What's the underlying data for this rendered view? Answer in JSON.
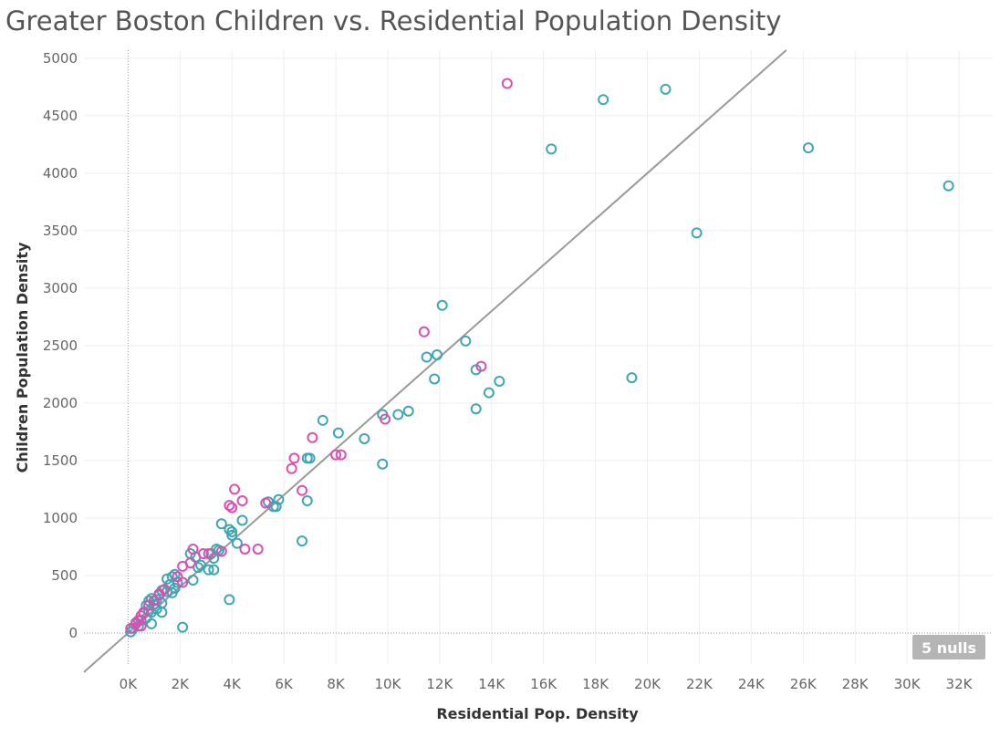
{
  "chart_data": {
    "type": "scatter",
    "title": "Greater Boston Children vs. Residential Population Density",
    "xlabel": "Residential Pop. Density",
    "ylabel": "Children Population Density",
    "xlim": [
      -1700,
      33300
    ],
    "ylim": [
      -270,
      5070
    ],
    "x_ticks": [
      0,
      2000,
      4000,
      6000,
      8000,
      10000,
      12000,
      14000,
      16000,
      18000,
      20000,
      22000,
      24000,
      26000,
      28000,
      30000,
      32000
    ],
    "x_tick_labels": [
      "0K",
      "2K",
      "4K",
      "6K",
      "8K",
      "10K",
      "12K",
      "14K",
      "16K",
      "18K",
      "20K",
      "22K",
      "24K",
      "26K",
      "28K",
      "30K",
      "32K"
    ],
    "y_ticks": [
      0,
      500,
      1000,
      1500,
      2000,
      2500,
      3000,
      3500,
      4000,
      4500,
      5000
    ],
    "y_tick_labels": [
      "0",
      "500",
      "1000",
      "1500",
      "2000",
      "2500",
      "3000",
      "3500",
      "4000",
      "4500",
      "5000"
    ],
    "grid": true,
    "trend_line": {
      "slope": 0.2,
      "intercept": 0
    },
    "colors": {
      "teal": "#3fa6b3",
      "pink": "#db4fb1",
      "trend": "#999999",
      "grid": "#eeeeee"
    },
    "nulls_indicator": "5 nulls",
    "series": [
      {
        "color": "#3fa6b3",
        "points": [
          [
            31600,
            3890
          ],
          [
            26200,
            4220
          ],
          [
            20700,
            4730
          ],
          [
            18300,
            4640
          ],
          [
            16300,
            4210
          ],
          [
            21900,
            3480
          ],
          [
            19400,
            2220
          ],
          [
            12100,
            2850
          ],
          [
            13000,
            2540
          ],
          [
            11900,
            2420
          ],
          [
            11500,
            2400
          ],
          [
            11800,
            2210
          ],
          [
            13400,
            2290
          ],
          [
            14300,
            2190
          ],
          [
            13900,
            2090
          ],
          [
            13400,
            1950
          ],
          [
            10800,
            1930
          ],
          [
            10400,
            1900
          ],
          [
            9800,
            1900
          ],
          [
            7500,
            1850
          ],
          [
            8100,
            1740
          ],
          [
            9100,
            1690
          ],
          [
            7000,
            1520
          ],
          [
            6900,
            1520
          ],
          [
            9800,
            1470
          ],
          [
            6900,
            1150
          ],
          [
            5800,
            1160
          ],
          [
            5400,
            1140
          ],
          [
            5700,
            1100
          ],
          [
            5600,
            1100
          ],
          [
            4400,
            980
          ],
          [
            3600,
            950
          ],
          [
            3900,
            900
          ],
          [
            4000,
            880
          ],
          [
            4000,
            850
          ],
          [
            4200,
            780
          ],
          [
            6700,
            800
          ],
          [
            3400,
            730
          ],
          [
            3500,
            720
          ],
          [
            3200,
            690
          ],
          [
            2400,
            690
          ],
          [
            2600,
            660
          ],
          [
            3300,
            650
          ],
          [
            2800,
            590
          ],
          [
            2700,
            570
          ],
          [
            3100,
            550
          ],
          [
            3300,
            550
          ],
          [
            2500,
            460
          ],
          [
            1800,
            510
          ],
          [
            1700,
            490
          ],
          [
            1500,
            470
          ],
          [
            1900,
            440
          ],
          [
            1600,
            420
          ],
          [
            1800,
            390
          ],
          [
            1500,
            360
          ],
          [
            1700,
            350
          ],
          [
            1300,
            370
          ],
          [
            1200,
            330
          ],
          [
            1100,
            290
          ],
          [
            1300,
            260
          ],
          [
            900,
            300
          ],
          [
            800,
            280
          ],
          [
            1000,
            250
          ],
          [
            700,
            240
          ],
          [
            1100,
            210
          ],
          [
            800,
            190
          ],
          [
            900,
            180
          ],
          [
            600,
            170
          ],
          [
            1300,
            180
          ],
          [
            700,
            130
          ],
          [
            500,
            110
          ],
          [
            300,
            90
          ],
          [
            400,
            60
          ],
          [
            200,
            40
          ],
          [
            100,
            10
          ],
          [
            900,
            80
          ],
          [
            3900,
            290
          ],
          [
            2100,
            50
          ]
        ]
      },
      {
        "color": "#db4fb1",
        "points": [
          [
            14600,
            4780
          ],
          [
            11400,
            2620
          ],
          [
            13600,
            2320
          ],
          [
            9900,
            1860
          ],
          [
            7100,
            1700
          ],
          [
            6400,
            1520
          ],
          [
            8000,
            1550
          ],
          [
            8200,
            1550
          ],
          [
            6300,
            1430
          ],
          [
            6700,
            1240
          ],
          [
            4100,
            1250
          ],
          [
            3900,
            1110
          ],
          [
            4400,
            1150
          ],
          [
            4000,
            1090
          ],
          [
            5300,
            1130
          ],
          [
            3600,
            710
          ],
          [
            4500,
            730
          ],
          [
            5000,
            730
          ],
          [
            2500,
            730
          ],
          [
            3100,
            690
          ],
          [
            2900,
            690
          ],
          [
            2100,
            580
          ],
          [
            2400,
            610
          ],
          [
            2100,
            440
          ],
          [
            1900,
            490
          ],
          [
            1400,
            380
          ],
          [
            1200,
            340
          ],
          [
            1000,
            280
          ],
          [
            800,
            240
          ],
          [
            600,
            180
          ],
          [
            500,
            150
          ],
          [
            400,
            110
          ],
          [
            300,
            80
          ],
          [
            500,
            60
          ],
          [
            100,
            40
          ]
        ]
      }
    ]
  }
}
